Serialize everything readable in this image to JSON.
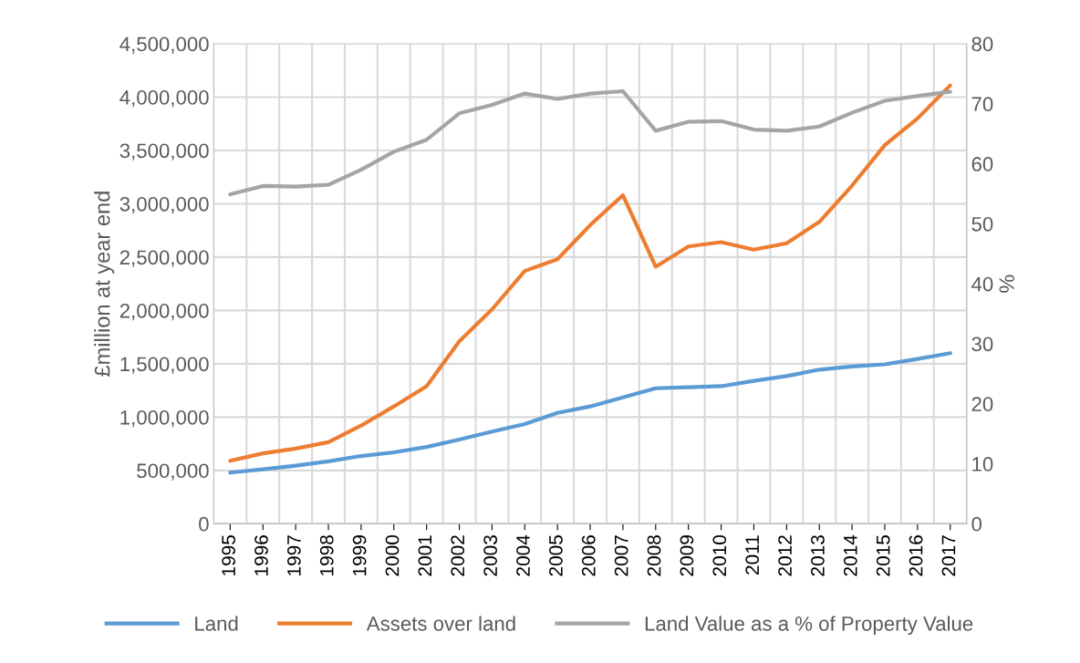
{
  "chart_data": {
    "type": "line",
    "ylabel": "£million at year end",
    "y2label": "%",
    "categories": [
      "1995",
      "1996",
      "1997",
      "1998",
      "1999",
      "2000",
      "2001",
      "2002",
      "2003",
      "2004",
      "2005",
      "2006",
      "2007",
      "2008",
      "2009",
      "2010",
      "2011",
      "2012",
      "2013",
      "2014",
      "2015",
      "2016",
      "2017"
    ],
    "series": [
      {
        "name": "Land",
        "color": "#5b9bd5",
        "values": [
          480000,
          510000,
          545000,
          585000,
          635000,
          670000,
          720000,
          790000,
          865000,
          935000,
          1040000,
          1100000,
          1185000,
          1270000,
          1280000,
          1290000,
          1340000,
          1385000,
          1445000,
          1475000,
          1495000,
          1545000,
          1600000
        ]
      },
      {
        "name": "Assets over land",
        "color": "#ed7d31",
        "values": [
          590000,
          660000,
          705000,
          765000,
          920000,
          1100000,
          1290000,
          1710000,
          2010000,
          2370000,
          2480000,
          2800000,
          3080000,
          2410000,
          2600000,
          2640000,
          2570000,
          2630000,
          2830000,
          3170000,
          3550000,
          3800000,
          4110000
        ]
      },
      {
        "name": "Land Value as a % of Property Value",
        "color": "#a5a5a5",
        "axis": "y2",
        "values": [
          54.9,
          56.3,
          56.2,
          56.5,
          59,
          62,
          64,
          68.4,
          69.8,
          71.7,
          70.8,
          71.7,
          72.1,
          65.5,
          67,
          67.1,
          65.7,
          65.5,
          66.2,
          68.5,
          70.5,
          71.3,
          72
        ]
      }
    ],
    "ylim": [
      0,
      4500000
    ],
    "yticks": [
      {
        "value": 0,
        "label": "0"
      },
      {
        "value": 500000,
        "label": "500,000"
      },
      {
        "value": 1000000,
        "label": "1,000,000"
      },
      {
        "value": 1500000,
        "label": "1,500,000"
      },
      {
        "value": 2000000,
        "label": "2,000,000"
      },
      {
        "value": 2500000,
        "label": "2,500,000"
      },
      {
        "value": 3000000,
        "label": "3,000,000"
      },
      {
        "value": 3500000,
        "label": "3,500,000"
      },
      {
        "value": 4000000,
        "label": "4,000,000"
      },
      {
        "value": 4500000,
        "label": "4,500,000"
      }
    ],
    "y2lim": [
      0,
      80
    ],
    "y2ticks": [
      0,
      10,
      20,
      30,
      40,
      50,
      60,
      70,
      80
    ],
    "grid": true,
    "legend": "bottom",
    "marker": "none",
    "line_style": "solid"
  }
}
